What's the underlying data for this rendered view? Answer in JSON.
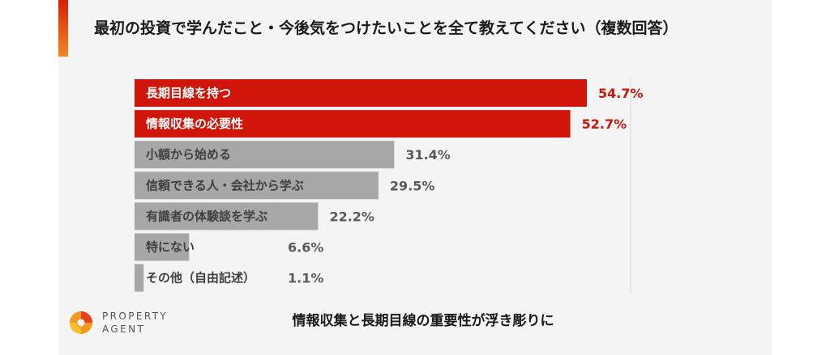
{
  "title": "最初の投資で学んだこと・今後気をつけたいことを全て教えてください（複数回答）",
  "chart_data": {
    "type": "bar",
    "orientation": "horizontal",
    "categories": [
      "長期目線を持つ",
      "情報収集の必要性",
      "小額から始める",
      "信頼できる人・会社から学ぶ",
      "有識者の体験談を学ぶ",
      "特にない",
      "その他（自由記述）"
    ],
    "values": [
      54.7,
      52.7,
      31.4,
      29.5,
      22.2,
      6.6,
      1.1
    ],
    "value_labels": [
      "54.7%",
      "52.7%",
      "31.4%",
      "29.5%",
      "22.2%",
      "6.6%",
      "1.1%"
    ],
    "highlighted": [
      true,
      true,
      false,
      false,
      false,
      false,
      false
    ],
    "xlim": [
      0,
      57
    ],
    "colors": {
      "highlight": "#d0160a",
      "normal": "#a7a7a7",
      "highlight_text": "#c8170c",
      "normal_text": "#5a5a5a"
    }
  },
  "logo": {
    "line1": "PROPERTY",
    "line2": "AGENT"
  },
  "footer": "情報収集と長期目線の重要性が浮き彫りに"
}
